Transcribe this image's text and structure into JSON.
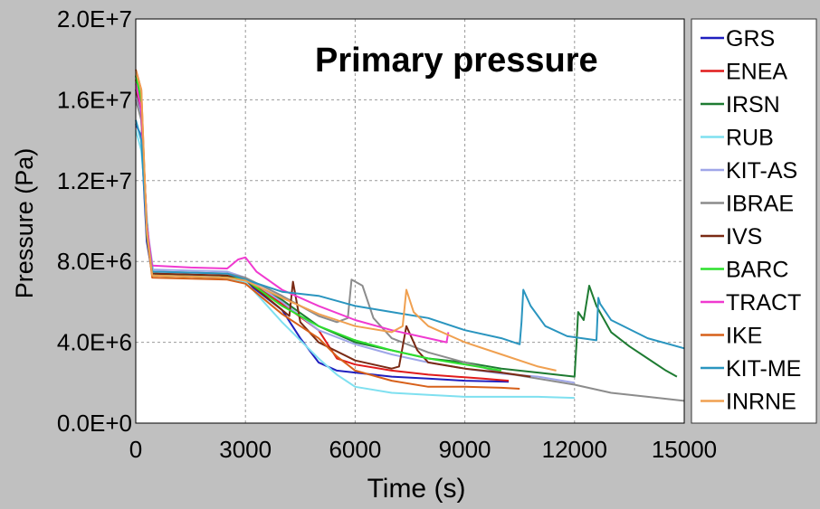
{
  "chart_data": {
    "type": "line",
    "title": "Primary pressure",
    "xlabel": "Time (s)",
    "ylabel": "Pressure (Pa)",
    "xlim": [
      0,
      15000
    ],
    "ylim": [
      0,
      20000000
    ],
    "xticks": [
      "0",
      "3000",
      "6000",
      "9000",
      "12000",
      "15000"
    ],
    "yticks": [
      "0.0E+0",
      "4.0E+6",
      "8.0E+6",
      "1.2E+7",
      "1.6E+7",
      "2.0E+7"
    ],
    "grid": true,
    "legend_position": "right",
    "series": [
      {
        "name": "GRS",
        "color": "#1f1fbf",
        "points": [
          [
            0,
            14800000
          ],
          [
            150,
            14200000
          ],
          [
            300,
            9000000
          ],
          [
            450,
            7400000
          ],
          [
            800,
            7300000
          ],
          [
            2200,
            7200000
          ],
          [
            3000,
            7000000
          ],
          [
            4000,
            5600000
          ],
          [
            4500,
            4200000
          ],
          [
            5000,
            3000000
          ],
          [
            5500,
            2600000
          ],
          [
            6000,
            2500000
          ],
          [
            7000,
            2300000
          ],
          [
            8000,
            2200000
          ],
          [
            9000,
            2100000
          ],
          [
            10200,
            2050000
          ]
        ]
      },
      {
        "name": "ENEA",
        "color": "#e01b1b",
        "points": [
          [
            0,
            17000000
          ],
          [
            150,
            15500000
          ],
          [
            300,
            10000000
          ],
          [
            450,
            7300000
          ],
          [
            2500,
            7200000
          ],
          [
            3000,
            7100000
          ],
          [
            4000,
            5900000
          ],
          [
            5000,
            4600000
          ],
          [
            5500,
            3200000
          ],
          [
            6000,
            2900000
          ],
          [
            7000,
            2600000
          ],
          [
            8000,
            2400000
          ],
          [
            9500,
            2200000
          ],
          [
            10200,
            2100000
          ]
        ]
      },
      {
        "name": "IRSN",
        "color": "#1e7b32",
        "points": [
          [
            0,
            17200000
          ],
          [
            150,
            16000000
          ],
          [
            300,
            9600000
          ],
          [
            450,
            7400000
          ],
          [
            2200,
            7300000
          ],
          [
            3000,
            7100000
          ],
          [
            4000,
            6100000
          ],
          [
            5000,
            4800000
          ],
          [
            6000,
            4000000
          ],
          [
            7000,
            3600000
          ],
          [
            8000,
            3200000
          ],
          [
            9000,
            3000000
          ],
          [
            10000,
            2700000
          ],
          [
            11000,
            2500000
          ],
          [
            12000,
            2300000
          ],
          [
            12050,
            3800000
          ],
          [
            12100,
            5500000
          ],
          [
            12250,
            5100000
          ],
          [
            12400,
            6800000
          ],
          [
            12600,
            5800000
          ],
          [
            13000,
            4500000
          ],
          [
            13500,
            3800000
          ],
          [
            14000,
            3200000
          ],
          [
            14500,
            2600000
          ],
          [
            14800,
            2300000
          ]
        ]
      },
      {
        "name": "RUB",
        "color": "#7fe0f0",
        "points": [
          [
            0,
            14500000
          ],
          [
            150,
            13500000
          ],
          [
            350,
            9200000
          ],
          [
            500,
            7300000
          ],
          [
            2200,
            7250000
          ],
          [
            3000,
            7000000
          ],
          [
            4000,
            5000000
          ],
          [
            5000,
            3200000
          ],
          [
            5500,
            2400000
          ],
          [
            6000,
            1800000
          ],
          [
            7000,
            1500000
          ],
          [
            8000,
            1400000
          ],
          [
            9000,
            1300000
          ],
          [
            10000,
            1300000
          ],
          [
            11000,
            1300000
          ],
          [
            12000,
            1250000
          ]
        ]
      },
      {
        "name": "KIT-AS",
        "color": "#9fa6e8",
        "points": [
          [
            0,
            16500000
          ],
          [
            150,
            15000000
          ],
          [
            300,
            9500000
          ],
          [
            450,
            7600000
          ],
          [
            2500,
            7500000
          ],
          [
            3000,
            7200000
          ],
          [
            4000,
            6000000
          ],
          [
            5000,
            4600000
          ],
          [
            6000,
            3900000
          ],
          [
            7000,
            3400000
          ],
          [
            8000,
            3000000
          ],
          [
            9000,
            2700000
          ],
          [
            10000,
            2450000
          ],
          [
            11000,
            2300000
          ],
          [
            12000,
            2000000
          ]
        ]
      },
      {
        "name": "IBRAE",
        "color": "#8c8c8c",
        "points": [
          [
            0,
            16000000
          ],
          [
            150,
            15000000
          ],
          [
            300,
            9800000
          ],
          [
            450,
            7500000
          ],
          [
            2500,
            7400000
          ],
          [
            3000,
            7200000
          ],
          [
            4000,
            6300000
          ],
          [
            5000,
            5300000
          ],
          [
            5500,
            5000000
          ],
          [
            5800,
            5200000
          ],
          [
            5900,
            7100000
          ],
          [
            6200,
            6800000
          ],
          [
            6500,
            5200000
          ],
          [
            6800,
            4600000
          ],
          [
            7000,
            4200000
          ],
          [
            8000,
            3500000
          ],
          [
            9000,
            3000000
          ],
          [
            10000,
            2500000
          ],
          [
            11000,
            2200000
          ],
          [
            12000,
            1900000
          ],
          [
            12500,
            1700000
          ],
          [
            13000,
            1500000
          ],
          [
            14000,
            1300000
          ],
          [
            15000,
            1100000
          ]
        ]
      },
      {
        "name": "IVS",
        "color": "#7a2a14",
        "points": [
          [
            0,
            16500000
          ],
          [
            150,
            15500000
          ],
          [
            300,
            9900000
          ],
          [
            450,
            7400000
          ],
          [
            2500,
            7300000
          ],
          [
            3000,
            7100000
          ],
          [
            4000,
            5600000
          ],
          [
            4200,
            5300000
          ],
          [
            4300,
            7000000
          ],
          [
            4500,
            5000000
          ],
          [
            5000,
            4000000
          ],
          [
            6000,
            3100000
          ],
          [
            7000,
            2700000
          ],
          [
            7200,
            2800000
          ],
          [
            7400,
            4800000
          ],
          [
            7700,
            3600000
          ],
          [
            8000,
            3000000
          ],
          [
            9000,
            2700000
          ],
          [
            10000,
            2500000
          ],
          [
            10800,
            2300000
          ]
        ]
      },
      {
        "name": "BARC",
        "color": "#2de02d",
        "points": [
          [
            0,
            17200000
          ],
          [
            150,
            16000000
          ],
          [
            300,
            9300000
          ],
          [
            450,
            7300000
          ],
          [
            2500,
            7200000
          ],
          [
            3000,
            7100000
          ],
          [
            4000,
            5800000
          ],
          [
            5000,
            4800000
          ],
          [
            6000,
            4100000
          ],
          [
            7000,
            3600000
          ],
          [
            8000,
            3200000
          ],
          [
            9000,
            2900000
          ],
          [
            10000,
            2600000
          ]
        ]
      },
      {
        "name": "TRACT",
        "color": "#f03ad0",
        "points": [
          [
            0,
            16800000
          ],
          [
            150,
            15500000
          ],
          [
            300,
            9800000
          ],
          [
            450,
            7800000
          ],
          [
            1500,
            7700000
          ],
          [
            2500,
            7650000
          ],
          [
            2800,
            8100000
          ],
          [
            3000,
            8200000
          ],
          [
            3300,
            7500000
          ],
          [
            4000,
            6600000
          ],
          [
            5000,
            5800000
          ],
          [
            6000,
            5100000
          ],
          [
            7000,
            4600000
          ],
          [
            8000,
            4200000
          ],
          [
            8500,
            4000000
          ],
          [
            8550,
            4500000
          ]
        ]
      },
      {
        "name": "IKE",
        "color": "#d7601a",
        "points": [
          [
            0,
            17500000
          ],
          [
            150,
            16500000
          ],
          [
            300,
            9400000
          ],
          [
            450,
            7200000
          ],
          [
            2500,
            7100000
          ],
          [
            3000,
            6900000
          ],
          [
            4000,
            5400000
          ],
          [
            5000,
            4200000
          ],
          [
            5500,
            3300000
          ],
          [
            6000,
            2600000
          ],
          [
            7000,
            2100000
          ],
          [
            8000,
            1800000
          ],
          [
            9000,
            1800000
          ],
          [
            10000,
            1750000
          ],
          [
            10500,
            1700000
          ]
        ]
      },
      {
        "name": "KIT-ME",
        "color": "#2a95bf",
        "points": [
          [
            0,
            15000000
          ],
          [
            150,
            14000000
          ],
          [
            300,
            9500000
          ],
          [
            450,
            7500000
          ],
          [
            2500,
            7400000
          ],
          [
            3000,
            7100000
          ],
          [
            4000,
            6500000
          ],
          [
            5000,
            6300000
          ],
          [
            6000,
            5800000
          ],
          [
            7000,
            5500000
          ],
          [
            8000,
            5200000
          ],
          [
            9000,
            4600000
          ],
          [
            10000,
            4200000
          ],
          [
            10500,
            3900000
          ],
          [
            10550,
            5000000
          ],
          [
            10600,
            6600000
          ],
          [
            10800,
            5800000
          ],
          [
            11200,
            4800000
          ],
          [
            11800,
            4300000
          ],
          [
            12200,
            4200000
          ],
          [
            12600,
            4100000
          ],
          [
            12650,
            6200000
          ],
          [
            12700,
            5900000
          ],
          [
            13000,
            5100000
          ],
          [
            14000,
            4200000
          ],
          [
            15000,
            3700000
          ]
        ]
      },
      {
        "name": "INRNE",
        "color": "#f0a050",
        "points": [
          [
            0,
            17400000
          ],
          [
            150,
            16500000
          ],
          [
            300,
            9600000
          ],
          [
            450,
            7300000
          ],
          [
            2500,
            7200000
          ],
          [
            3000,
            7050000
          ],
          [
            4000,
            6200000
          ],
          [
            5000,
            5400000
          ],
          [
            6000,
            4800000
          ],
          [
            7000,
            4500000
          ],
          [
            7300,
            4800000
          ],
          [
            7400,
            6600000
          ],
          [
            7600,
            5500000
          ],
          [
            8000,
            4800000
          ],
          [
            9000,
            4000000
          ],
          [
            10000,
            3400000
          ],
          [
            11000,
            2800000
          ],
          [
            11500,
            2600000
          ]
        ]
      }
    ]
  }
}
